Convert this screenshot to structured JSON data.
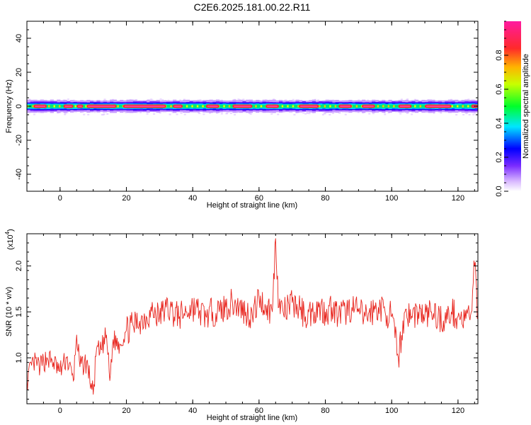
{
  "title": "C2E6.2025.181.00.22.R11",
  "colors": {
    "snr_line": "#e8261f",
    "frame": "#000000"
  },
  "chart_data": [
    {
      "type": "heatmap",
      "name": "spectrogram",
      "xlabel": "Height of straight line (km)",
      "ylabel": "Frequency (Hz)",
      "xlim": [
        -10,
        126
      ],
      "ylim": [
        -50,
        50
      ],
      "x_ticks": [
        "0",
        "20",
        "40",
        "60",
        "80",
        "100",
        "120"
      ],
      "y_ticks": [
        "40",
        "20",
        "0",
        "-20",
        "-40"
      ],
      "colorbar": {
        "label": "Normalized spectral amplitude",
        "range": [
          0,
          1
        ],
        "ticks": [
          "0.0",
          "0.2",
          "0.4",
          "0.6",
          "0.8"
        ],
        "colormap": "rainbow (white-violet-blue-cyan-green-yellow-red-magenta)"
      },
      "band_center_hz": 0,
      "band_halfwidth_hz": 3,
      "high_amplitude_segments_km": [
        [
          -8,
          -4
        ],
        [
          1,
          4
        ],
        [
          5,
          7
        ],
        [
          8,
          17
        ],
        [
          19,
          32
        ],
        [
          34,
          37
        ],
        [
          44,
          48
        ],
        [
          52,
          58
        ],
        [
          62,
          66
        ],
        [
          72,
          78
        ],
        [
          84,
          88
        ],
        [
          91,
          95
        ],
        [
          102,
          106
        ],
        [
          110,
          118
        ],
        [
          124,
          126
        ]
      ]
    },
    {
      "type": "line",
      "name": "snr",
      "xlabel": "Height of straight line (km)",
      "ylabel": "SNR (10 * v/v)",
      "scale_note": "(x10",
      "scale_exp": "4",
      "xlim": [
        -10,
        126
      ],
      "ylim": [
        0.5,
        2.35
      ],
      "x_ticks": [
        "0",
        "20",
        "40",
        "60",
        "80",
        "100",
        "120"
      ],
      "y_ticks": [
        "2.0",
        "1.5",
        "1.0"
      ],
      "series": [
        {
          "x": [
            -10,
            -8,
            -6,
            -4,
            -2,
            0,
            2,
            4,
            5,
            6,
            8,
            10,
            11,
            12,
            14,
            15,
            16,
            18,
            20,
            22,
            24,
            26,
            28,
            30,
            32,
            34,
            36,
            38,
            40,
            42,
            44,
            46,
            48,
            50,
            52,
            54,
            56,
            58,
            60,
            62,
            64,
            65,
            66,
            68,
            70,
            72,
            74,
            76,
            78,
            80,
            82,
            84,
            86,
            88,
            90,
            92,
            94,
            96,
            98,
            100,
            102,
            104,
            106,
            108,
            110,
            112,
            114,
            116,
            118,
            120,
            122,
            124,
            125,
            126
          ],
          "y": [
            0.75,
            0.95,
            0.9,
            1.0,
            0.95,
            0.85,
            1.0,
            0.75,
            1.25,
            0.9,
            0.95,
            0.6,
            1.1,
            1.05,
            1.25,
            0.75,
            1.2,
            1.15,
            1.3,
            1.35,
            1.4,
            1.45,
            1.5,
            1.45,
            1.55,
            1.5,
            1.45,
            1.5,
            1.55,
            1.5,
            1.45,
            1.5,
            1.5,
            1.55,
            1.6,
            1.55,
            1.5,
            1.45,
            1.65,
            1.55,
            1.5,
            2.3,
            1.55,
            1.5,
            1.6,
            1.55,
            1.45,
            1.5,
            1.55,
            1.5,
            1.55,
            1.45,
            1.5,
            1.55,
            1.5,
            1.45,
            1.5,
            1.55,
            1.5,
            1.45,
            1.0,
            1.5,
            1.45,
            1.5,
            1.45,
            1.5,
            1.45,
            1.4,
            1.5,
            1.45,
            1.4,
            1.5,
            2.0,
            1.45
          ]
        }
      ]
    }
  ]
}
